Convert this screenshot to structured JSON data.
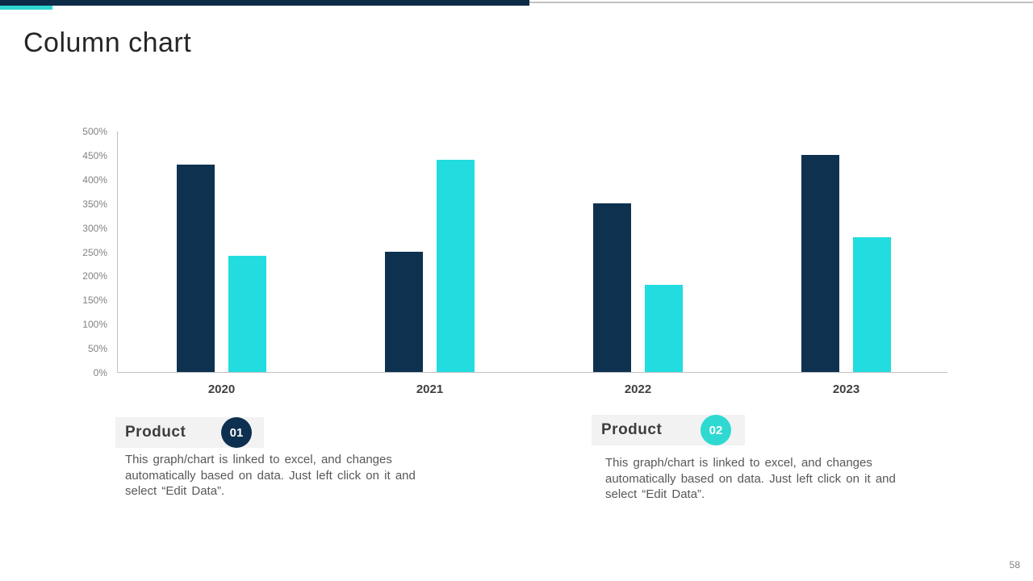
{
  "title": "Column chart",
  "page_number": "58",
  "header": {
    "bar_color": "#0c2b46",
    "accent_color": "#2ed9d2",
    "line_color": "#c2c2c2"
  },
  "products": [
    {
      "label": "Product",
      "number": "01",
      "badge_color": "#0d3050",
      "description": "This graph/chart is linked to excel, and changes automatically based on data. Just left click on it and select “Edit Data”."
    },
    {
      "label": "Product",
      "number": "02",
      "badge_color": "#2ed9d2",
      "description": "This graph/chart is linked to excel, and changes automatically based on data. Just left click on it and select “Edit Data”."
    }
  ],
  "chart_data": {
    "type": "bar",
    "title": "Column chart",
    "categories": [
      "2020",
      "2021",
      "2022",
      "2023"
    ],
    "series": [
      {
        "name": "Product 01",
        "color": "#0e3150",
        "values": [
          430,
          250,
          350,
          450
        ]
      },
      {
        "name": "Product 02",
        "color": "#22dcdf",
        "values": [
          240,
          440,
          180,
          280
        ]
      }
    ],
    "xlabel": "",
    "ylabel": "",
    "ylim": [
      0,
      500
    ],
    "y_tick_step": 50,
    "y_tick_suffix": "%",
    "grid": false,
    "legend_position": "bottom-cards"
  }
}
